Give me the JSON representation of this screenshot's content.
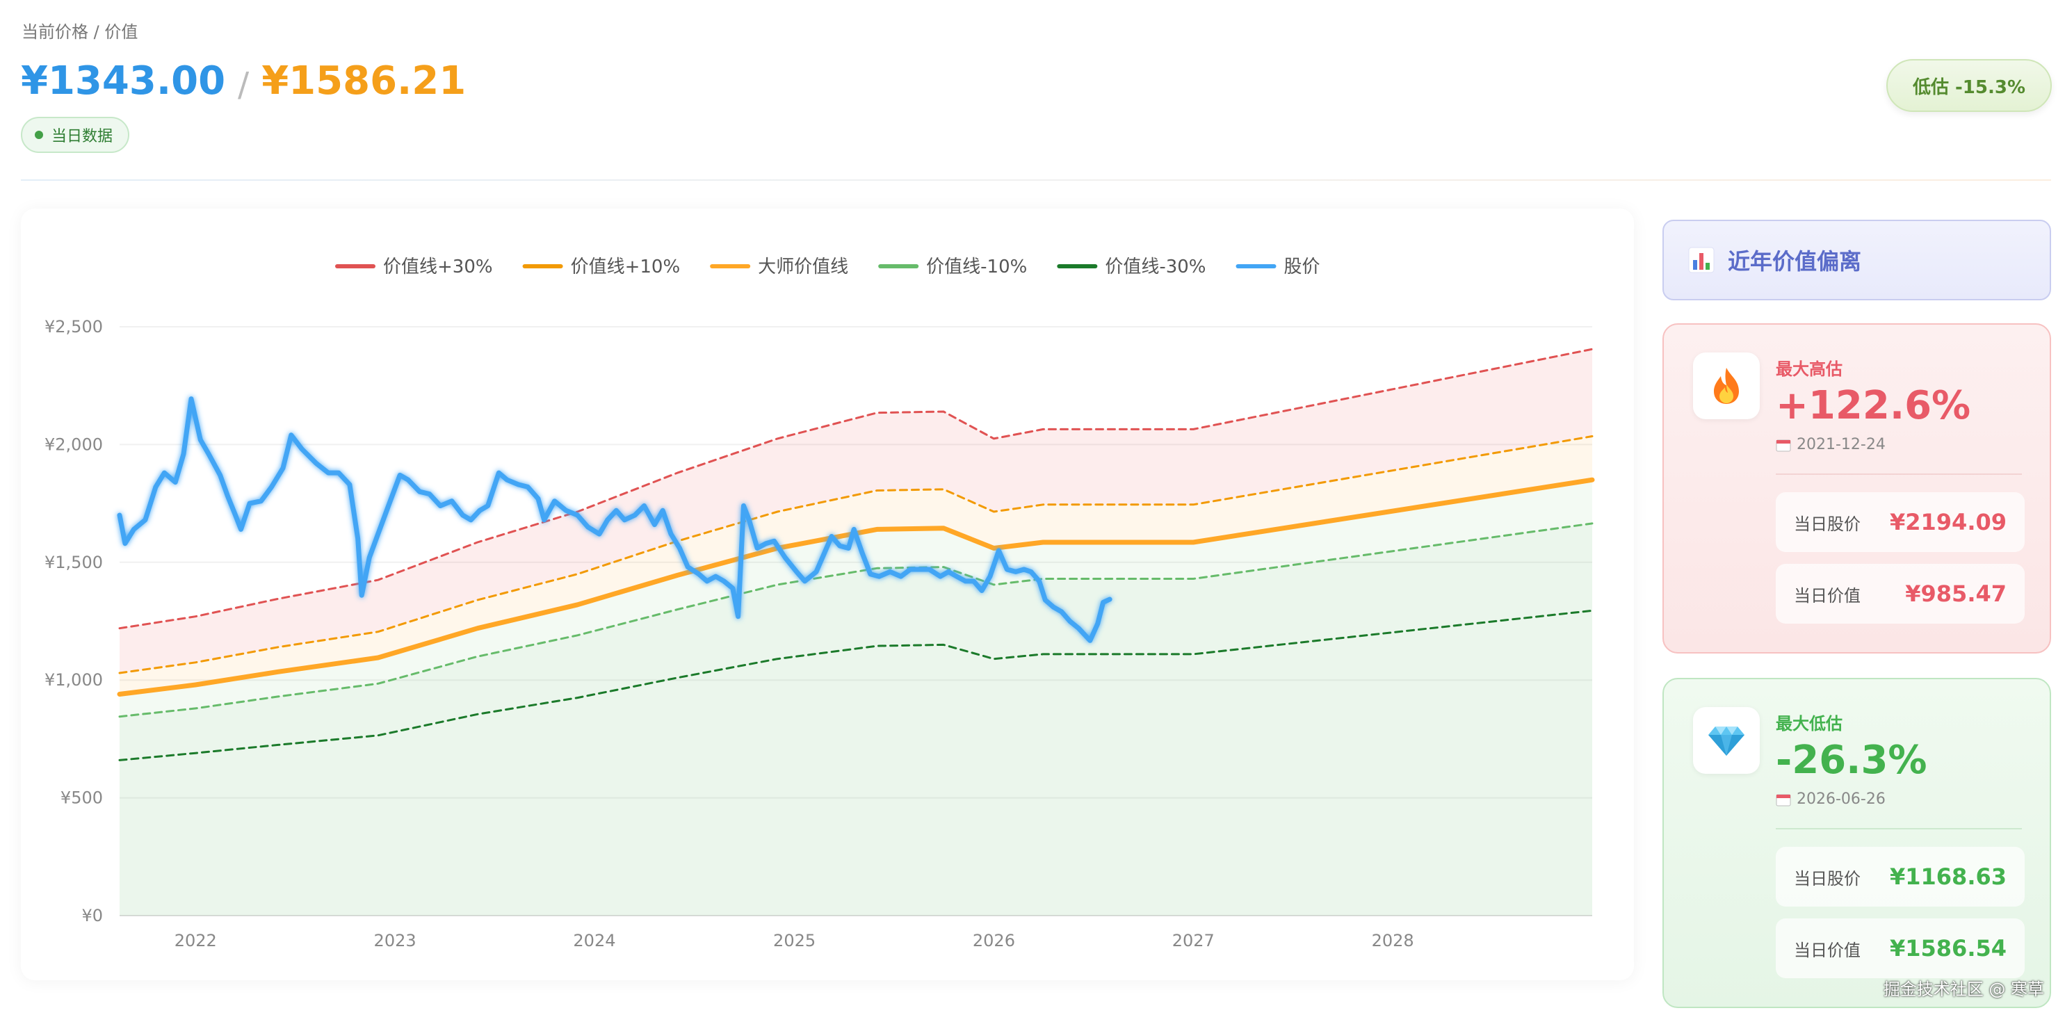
{
  "header": {
    "label": "当前价格 / 价值",
    "current_price": "¥1343.00",
    "separator": "/",
    "value_price": "¥1586.21",
    "data_badge": "当日数据",
    "status_pill": "低估 -15.3%"
  },
  "colors": {
    "price_blue": "#42a5f5",
    "value_orange": "#ffa726",
    "plus30": "#e05252",
    "plus10": "#f29a05",
    "minus10": "#66bb6a",
    "minus30": "#1b7a2a",
    "high_red": "#e85a67",
    "low_green": "#43b24e"
  },
  "chart_data": {
    "type": "line",
    "x_axis_type": "date",
    "title": "",
    "xlabel": "",
    "ylabel": "",
    "ylim": [
      0,
      2500
    ],
    "xlim": [
      "2021-08-15",
      "2028-12-31"
    ],
    "y_ticks": [
      "¥0",
      "¥500",
      "¥1,000",
      "¥1,500",
      "¥2,000",
      "¥2,500"
    ],
    "y_tick_values": [
      0,
      500,
      1000,
      1500,
      2000,
      2500
    ],
    "x_ticks": [
      "2022",
      "2023",
      "2024",
      "2025",
      "2026",
      "2027",
      "2028"
    ],
    "x_tick_dates": [
      "2022-01-01",
      "2023-01-01",
      "2024-01-01",
      "2025-01-01",
      "2026-01-01",
      "2027-01-01",
      "2028-01-01"
    ],
    "grid": true,
    "legend_position": "top-center",
    "bands": [
      {
        "from": "价值线+10%",
        "to": "价值线+30%",
        "fill": "rgba(239,83,80,0.10)"
      },
      {
        "from": "大师价值线",
        "to": "价值线+10%",
        "fill": "rgba(255,152,0,0.08)"
      },
      {
        "from": "价值线-10%",
        "to": "大师价值线",
        "fill": "rgba(102,187,106,0.08)"
      },
      {
        "from": "baseline",
        "to": "价值线-10%",
        "fill": "rgba(102,187,106,0.13)"
      }
    ],
    "series": [
      {
        "name": "价值线+30%",
        "style": "dashed",
        "color": "#e05252",
        "points": [
          [
            "2021-08-15",
            1220
          ],
          [
            "2022-01-01",
            1270
          ],
          [
            "2022-06-01",
            1345
          ],
          [
            "2022-12-01",
            1425
          ],
          [
            "2023-06-01",
            1585
          ],
          [
            "2023-12-01",
            1715
          ],
          [
            "2024-06-01",
            1880
          ],
          [
            "2024-12-01",
            2025
          ],
          [
            "2025-06-01",
            2135
          ],
          [
            "2025-10-01",
            2140
          ],
          [
            "2026-01-01",
            2025
          ],
          [
            "2026-04-01",
            2065
          ],
          [
            "2027-01-01",
            2065
          ],
          [
            "2028-12-31",
            2405
          ]
        ]
      },
      {
        "name": "价值线+10%",
        "style": "dashed",
        "color": "#f29a05",
        "points": [
          [
            "2021-08-15",
            1030
          ],
          [
            "2022-01-01",
            1075
          ],
          [
            "2022-06-01",
            1140
          ],
          [
            "2022-12-01",
            1205
          ],
          [
            "2023-06-01",
            1340
          ],
          [
            "2023-12-01",
            1450
          ],
          [
            "2024-06-01",
            1590
          ],
          [
            "2024-12-01",
            1715
          ],
          [
            "2025-06-01",
            1805
          ],
          [
            "2025-10-01",
            1810
          ],
          [
            "2026-01-01",
            1715
          ],
          [
            "2026-04-01",
            1745
          ],
          [
            "2027-01-01",
            1745
          ],
          [
            "2028-12-31",
            2035
          ]
        ]
      },
      {
        "name": "大师价值线",
        "style": "solid",
        "color": "#ffa726",
        "points": [
          [
            "2021-08-15",
            940
          ],
          [
            "2022-01-01",
            980
          ],
          [
            "2022-06-01",
            1035
          ],
          [
            "2022-12-01",
            1095
          ],
          [
            "2023-06-01",
            1220
          ],
          [
            "2023-12-01",
            1320
          ],
          [
            "2024-06-01",
            1445
          ],
          [
            "2024-12-01",
            1560
          ],
          [
            "2025-06-01",
            1640
          ],
          [
            "2025-10-01",
            1645
          ],
          [
            "2026-01-01",
            1560
          ],
          [
            "2026-04-01",
            1585
          ],
          [
            "2027-01-01",
            1585
          ],
          [
            "2028-12-31",
            1850
          ]
        ]
      },
      {
        "name": "价值线-10%",
        "style": "dashed",
        "color": "#66bb6a",
        "points": [
          [
            "2021-08-15",
            845
          ],
          [
            "2022-01-01",
            880
          ],
          [
            "2022-06-01",
            930
          ],
          [
            "2022-12-01",
            985
          ],
          [
            "2023-06-01",
            1100
          ],
          [
            "2023-12-01",
            1190
          ],
          [
            "2024-06-01",
            1300
          ],
          [
            "2024-12-01",
            1405
          ],
          [
            "2025-06-01",
            1475
          ],
          [
            "2025-10-01",
            1480
          ],
          [
            "2026-01-01",
            1405
          ],
          [
            "2026-04-01",
            1430
          ],
          [
            "2027-01-01",
            1430
          ],
          [
            "2028-12-31",
            1665
          ]
        ]
      },
      {
        "name": "价值线-30%",
        "style": "dashed",
        "color": "#1b7a2a",
        "points": [
          [
            "2021-08-15",
            660
          ],
          [
            "2022-01-01",
            690
          ],
          [
            "2022-06-01",
            725
          ],
          [
            "2022-12-01",
            765
          ],
          [
            "2023-06-01",
            855
          ],
          [
            "2023-12-01",
            925
          ],
          [
            "2024-06-01",
            1010
          ],
          [
            "2024-12-01",
            1090
          ],
          [
            "2025-06-01",
            1145
          ],
          [
            "2025-10-01",
            1150
          ],
          [
            "2026-01-01",
            1090
          ],
          [
            "2026-04-01",
            1110
          ],
          [
            "2027-01-01",
            1110
          ],
          [
            "2028-12-31",
            1295
          ]
        ]
      },
      {
        "name": "股价",
        "style": "solid",
        "color": "#42a5f5",
        "points": [
          [
            "2021-08-15",
            1700
          ],
          [
            "2021-08-25",
            1580
          ],
          [
            "2021-09-10",
            1640
          ],
          [
            "2021-10-01",
            1680
          ],
          [
            "2021-10-20",
            1820
          ],
          [
            "2021-11-05",
            1880
          ],
          [
            "2021-11-25",
            1840
          ],
          [
            "2021-12-10",
            1960
          ],
          [
            "2021-12-24",
            2194
          ],
          [
            "2022-01-10",
            2020
          ],
          [
            "2022-01-25",
            1960
          ],
          [
            "2022-02-15",
            1870
          ],
          [
            "2022-03-01",
            1780
          ],
          [
            "2022-03-15",
            1700
          ],
          [
            "2022-03-25",
            1640
          ],
          [
            "2022-04-10",
            1750
          ],
          [
            "2022-05-01",
            1760
          ],
          [
            "2022-05-20",
            1820
          ],
          [
            "2022-06-10",
            1900
          ],
          [
            "2022-06-25",
            2040
          ],
          [
            "2022-07-15",
            1980
          ],
          [
            "2022-08-10",
            1920
          ],
          [
            "2022-09-01",
            1880
          ],
          [
            "2022-09-20",
            1880
          ],
          [
            "2022-10-10",
            1830
          ],
          [
            "2022-10-25",
            1600
          ],
          [
            "2022-11-01",
            1360
          ],
          [
            "2022-11-15",
            1520
          ],
          [
            "2022-12-01",
            1620
          ],
          [
            "2022-12-20",
            1740
          ],
          [
            "2023-01-10",
            1870
          ],
          [
            "2023-01-25",
            1850
          ],
          [
            "2023-02-15",
            1800
          ],
          [
            "2023-03-05",
            1790
          ],
          [
            "2023-03-25",
            1740
          ],
          [
            "2023-04-15",
            1760
          ],
          [
            "2023-05-05",
            1700
          ],
          [
            "2023-05-20",
            1680
          ],
          [
            "2023-06-05",
            1720
          ],
          [
            "2023-06-20",
            1740
          ],
          [
            "2023-07-10",
            1880
          ],
          [
            "2023-07-25",
            1850
          ],
          [
            "2023-08-15",
            1830
          ],
          [
            "2023-09-01",
            1820
          ],
          [
            "2023-09-20",
            1770
          ],
          [
            "2023-10-01",
            1680
          ],
          [
            "2023-10-20",
            1760
          ],
          [
            "2023-11-10",
            1720
          ],
          [
            "2023-12-01",
            1700
          ],
          [
            "2023-12-20",
            1650
          ],
          [
            "2024-01-10",
            1620
          ],
          [
            "2024-01-25",
            1680
          ],
          [
            "2024-02-10",
            1720
          ],
          [
            "2024-02-25",
            1680
          ],
          [
            "2024-03-15",
            1700
          ],
          [
            "2024-04-01",
            1740
          ],
          [
            "2024-04-20",
            1660
          ],
          [
            "2024-05-05",
            1720
          ],
          [
            "2024-05-20",
            1620
          ],
          [
            "2024-06-05",
            1560
          ],
          [
            "2024-06-20",
            1480
          ],
          [
            "2024-07-10",
            1450
          ],
          [
            "2024-07-25",
            1420
          ],
          [
            "2024-08-10",
            1440
          ],
          [
            "2024-08-25",
            1420
          ],
          [
            "2024-09-10",
            1390
          ],
          [
            "2024-09-20",
            1270
          ],
          [
            "2024-09-30",
            1740
          ],
          [
            "2024-10-10",
            1680
          ],
          [
            "2024-10-25",
            1560
          ],
          [
            "2024-11-10",
            1580
          ],
          [
            "2024-11-25",
            1590
          ],
          [
            "2024-12-15",
            1520
          ],
          [
            "2025-01-05",
            1460
          ],
          [
            "2025-01-20",
            1420
          ],
          [
            "2025-02-10",
            1460
          ],
          [
            "2025-02-25",
            1540
          ],
          [
            "2025-03-10",
            1610
          ],
          [
            "2025-03-25",
            1570
          ],
          [
            "2025-04-10",
            1560
          ],
          [
            "2025-04-20",
            1640
          ],
          [
            "2025-05-05",
            1540
          ],
          [
            "2025-05-20",
            1450
          ],
          [
            "2025-06-05",
            1440
          ],
          [
            "2025-06-25",
            1460
          ],
          [
            "2025-07-15",
            1440
          ],
          [
            "2025-08-01",
            1470
          ],
          [
            "2025-08-20",
            1470
          ],
          [
            "2025-09-05",
            1470
          ],
          [
            "2025-09-25",
            1440
          ],
          [
            "2025-10-10",
            1460
          ],
          [
            "2025-10-25",
            1440
          ],
          [
            "2025-11-10",
            1420
          ],
          [
            "2025-11-25",
            1420
          ],
          [
            "2025-12-10",
            1380
          ],
          [
            "2025-12-25",
            1440
          ],
          [
            "2026-01-10",
            1550
          ],
          [
            "2026-01-25",
            1470
          ],
          [
            "2026-02-10",
            1460
          ],
          [
            "2026-02-25",
            1470
          ],
          [
            "2026-03-10",
            1460
          ],
          [
            "2026-03-25",
            1420
          ],
          [
            "2026-04-05",
            1340
          ],
          [
            "2026-04-20",
            1310
          ],
          [
            "2026-05-05",
            1290
          ],
          [
            "2026-05-20",
            1250
          ],
          [
            "2026-06-05",
            1220
          ],
          [
            "2026-06-26",
            1168
          ],
          [
            "2026-07-10",
            1240
          ],
          [
            "2026-07-20",
            1330
          ],
          [
            "2026-08-01",
            1343
          ]
        ]
      }
    ]
  },
  "sidebar": {
    "title": "近年价值偏离",
    "high": {
      "label": "最大高估",
      "percent": "+122.6%",
      "date": "2021-12-24",
      "price_label": "当日股价",
      "price": "¥2194.09",
      "value_label": "当日价值",
      "value": "¥985.47",
      "icon": "fire-icon"
    },
    "low": {
      "label": "最大低估",
      "percent": "-26.3%",
      "date": "2026-06-26",
      "price_label": "当日股价",
      "price": "¥1168.63",
      "value_label": "当日价值",
      "value": "¥1586.54",
      "icon": "diamond-icon"
    }
  },
  "watermark": "掘金技术社区 @ 寒草"
}
